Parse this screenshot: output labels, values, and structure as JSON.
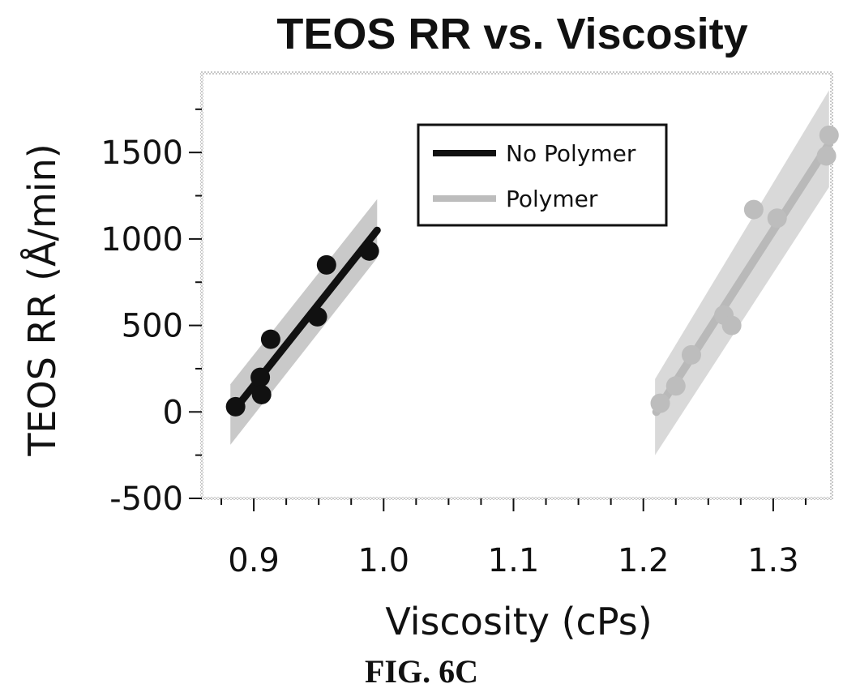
{
  "chart_data": {
    "type": "scatter",
    "title": "TEOS RR vs. Viscosity",
    "xlabel": "Viscosity (cPs)",
    "ylabel": "TEOS RR (Å/min)",
    "xlim": [
      0.86,
      1.345
    ],
    "ylim": [
      -500,
      1960
    ],
    "xticks": [
      0.9,
      1.0,
      1.1,
      1.2,
      1.3
    ],
    "xtick_labels": [
      "0.9",
      "1.0",
      "1.1",
      "1.2",
      "1.3"
    ],
    "yticks": [
      -500,
      0,
      500,
      1000,
      1500
    ],
    "ytick_labels": [
      "-500",
      "0",
      "500",
      "1000",
      "1500"
    ],
    "grid": false,
    "legend_position": "top-center",
    "series": [
      {
        "name": "No Polymer",
        "color": "#111111",
        "points": [
          {
            "x": 0.886,
            "y": 30
          },
          {
            "x": 0.905,
            "y": 200
          },
          {
            "x": 0.906,
            "y": 100
          },
          {
            "x": 0.913,
            "y": 420
          },
          {
            "x": 0.949,
            "y": 550
          },
          {
            "x": 0.956,
            "y": 850
          },
          {
            "x": 0.989,
            "y": 930
          }
        ],
        "fit": {
          "x": [
            0.886,
            0.995
          ],
          "y": [
            20,
            1050
          ]
        },
        "band": {
          "x": [
            0.882,
            0.995
          ],
          "upper": [
            160,
            1230
          ],
          "lower": [
            -190,
            890
          ]
        }
      },
      {
        "name": "Polymer",
        "color": "#b3b3b3",
        "points": [
          {
            "x": 1.213,
            "y": 50
          },
          {
            "x": 1.225,
            "y": 150
          },
          {
            "x": 1.237,
            "y": 330
          },
          {
            "x": 1.262,
            "y": 560
          },
          {
            "x": 1.268,
            "y": 500
          },
          {
            "x": 1.285,
            "y": 1170
          },
          {
            "x": 1.303,
            "y": 1120
          },
          {
            "x": 1.341,
            "y": 1480
          },
          {
            "x": 1.343,
            "y": 1600
          }
        ],
        "fit": {
          "x": [
            1.21,
            1.343
          ],
          "y": [
            0,
            1550
          ]
        },
        "band": {
          "x": [
            1.209,
            1.343
          ],
          "upper": [
            190,
            1860
          ],
          "lower": [
            -250,
            1300
          ]
        }
      }
    ]
  },
  "caption": "FIG. 6C"
}
